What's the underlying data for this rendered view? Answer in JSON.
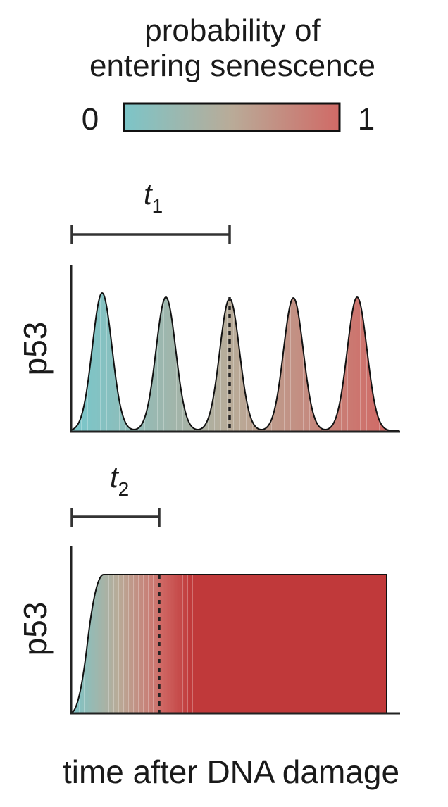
{
  "legend": {
    "title_line1": "probability of",
    "title_line2": "entering senescence",
    "min_label": "0",
    "max_label": "1",
    "color_low": "#7cc5c8",
    "color_mid": "#b9ab98",
    "color_high": "#d06a66"
  },
  "chart_data": [
    {
      "type": "area",
      "ylabel": "p53",
      "xlabel": "",
      "pattern": "oscillating pulses",
      "pulses": 5,
      "fill": "gradient by probability of entering senescence",
      "interval_label": {
        "main": "t",
        "sub": "1"
      },
      "dashed_marker": "end of t1",
      "grid": false
    },
    {
      "type": "area",
      "ylabel": "p53",
      "xlabel": "time after DNA damage",
      "pattern": "sustained plateau",
      "fill": "gradient by probability of entering senescence, saturating to red",
      "color_saturated": "#c0393a",
      "interval_label": {
        "main": "t",
        "sub": "2"
      },
      "dashed_marker": "end of t2",
      "grid": false
    }
  ]
}
